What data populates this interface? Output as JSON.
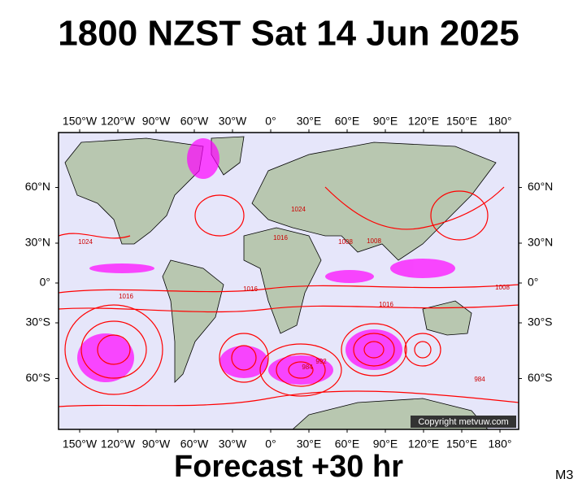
{
  "title": "1800 NZST Sat 14 Jun 2025",
  "map": {
    "lon_ticks": [
      {
        "value": -150,
        "label": "150°W"
      },
      {
        "value": -120,
        "label": "120°W"
      },
      {
        "value": -90,
        "label": "90°W"
      },
      {
        "value": -60,
        "label": "60°W"
      },
      {
        "value": -30,
        "label": "30°W"
      },
      {
        "value": 0,
        "label": "0°"
      },
      {
        "value": 30,
        "label": "30°E"
      },
      {
        "value": 60,
        "label": "60°E"
      },
      {
        "value": 90,
        "label": "90°E"
      },
      {
        "value": 120,
        "label": "120°E"
      },
      {
        "value": 150,
        "label": "150°E"
      },
      {
        "value": 180,
        "label": "180°"
      }
    ],
    "lat_ticks": [
      {
        "value": 60,
        "label": "60°N"
      },
      {
        "value": 30,
        "label": "30°N"
      },
      {
        "value": 0,
        "label": "0°"
      },
      {
        "value": -30,
        "label": "30°S"
      },
      {
        "value": -60,
        "label": "60°S"
      }
    ],
    "isobar_labels": [
      "1024",
      "1016",
      "1008",
      "1008",
      "1016",
      "1016",
      "1016",
      "984",
      "992",
      "984",
      "1008",
      "1024"
    ],
    "copyright": "Copyright metvuw.com"
  },
  "footer": "Forecast +30 hr",
  "model": "M3"
}
